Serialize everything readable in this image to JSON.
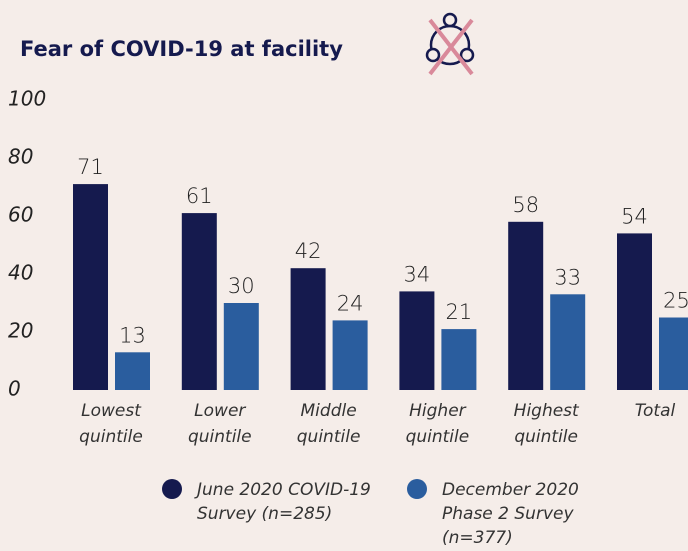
{
  "chart_data": {
    "type": "bar",
    "title": "Fear of COVID-19 at facility",
    "categories": [
      "Lowest quintile",
      "Lower quintile",
      "Middle quintile",
      "Higher quintile",
      "Highest quintile",
      "Total"
    ],
    "series": [
      {
        "name": "June 2020 COVID-19 Survey (n=285)",
        "color": "#151a4e",
        "values": [
          71,
          61,
          42,
          34,
          58,
          54
        ]
      },
      {
        "name": "December 2020 Phase 2 Survey (n=377)",
        "color": "#2a5d9e",
        "values": [
          13,
          30,
          24,
          21,
          33,
          25
        ]
      }
    ],
    "ylim": [
      0,
      100
    ],
    "yticks": [
      0,
      20,
      40,
      60,
      80,
      100
    ],
    "grid": false
  }
}
